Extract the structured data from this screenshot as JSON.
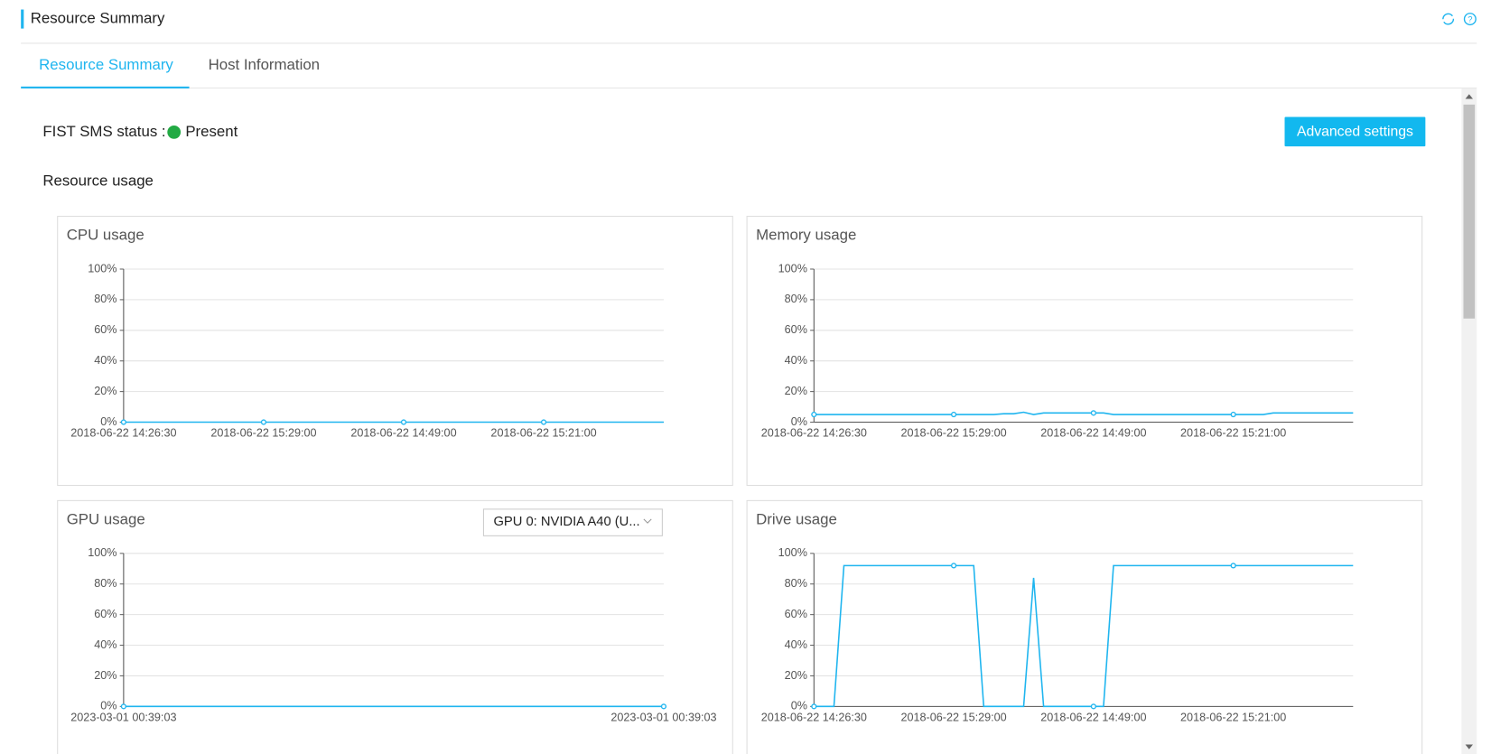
{
  "header": {
    "title": "Resource Summary"
  },
  "tabs": [
    "Resource Summary",
    "Host Information"
  ],
  "status": {
    "label": "FIST SMS status :",
    "value": "Present"
  },
  "button": "Advanced settings",
  "section_title": "Resource usage",
  "gpu_select": "GPU 0: NVIDIA A40 (U...",
  "chart_data": [
    {
      "type": "line",
      "title": "CPU usage",
      "color": "#1fb5ef",
      "grid": true,
      "categories": [
        "2018-06-22 14:26:30",
        null,
        null,
        null,
        null,
        null,
        null,
        null,
        null,
        null,
        null,
        null,
        null,
        null,
        "2018-06-22 15:29:00",
        null,
        null,
        null,
        null,
        null,
        null,
        null,
        null,
        null,
        null,
        null,
        null,
        null,
        "2018-06-22 14:49:00",
        null,
        null,
        null,
        null,
        null,
        null,
        null,
        null,
        null,
        null,
        null,
        null,
        null,
        "2018-06-22 15:21:00",
        null,
        null,
        null,
        null,
        null,
        null,
        null,
        null,
        null,
        null,
        null,
        null
      ],
      "values": [
        0,
        0,
        0,
        0,
        0,
        0,
        0,
        0,
        0,
        0,
        0,
        0,
        0,
        0,
        0,
        0,
        0,
        0,
        0,
        0,
        0,
        0,
        0,
        0,
        0,
        0,
        0,
        0,
        0,
        0,
        0,
        0,
        0,
        0,
        0,
        0,
        0,
        0,
        0,
        0,
        0,
        0,
        0,
        0,
        0,
        0,
        0,
        0,
        0,
        0,
        0,
        0,
        0,
        0,
        0
      ],
      "ylim": [
        0,
        100
      ],
      "yticks": [
        {
          "value": 0,
          "label": "0%"
        },
        {
          "value": 20,
          "label": "20%"
        },
        {
          "value": 40,
          "label": "40%"
        },
        {
          "value": 60,
          "label": "60%"
        },
        {
          "value": 80,
          "label": "80%"
        },
        {
          "value": 100,
          "label": "100%"
        }
      ]
    },
    {
      "type": "line",
      "title": "Memory usage",
      "color": "#1fb5ef",
      "grid": true,
      "categories": [
        "2018-06-22 14:26:30",
        null,
        null,
        null,
        null,
        null,
        null,
        null,
        null,
        null,
        null,
        null,
        null,
        null,
        "2018-06-22 15:29:00",
        null,
        null,
        null,
        null,
        null,
        null,
        null,
        null,
        null,
        null,
        null,
        null,
        null,
        "2018-06-22 14:49:00",
        null,
        null,
        null,
        null,
        null,
        null,
        null,
        null,
        null,
        null,
        null,
        null,
        null,
        "2018-06-22 15:21:00",
        null,
        null,
        null,
        null,
        null,
        null,
        null,
        null,
        null,
        null,
        null,
        null
      ],
      "values": [
        5,
        5,
        5,
        5,
        5,
        5,
        5,
        5,
        5,
        5,
        5,
        5,
        5,
        5,
        5,
        5,
        5,
        5,
        5,
        5.5,
        5.5,
        6.5,
        5,
        6,
        6,
        6,
        6,
        6,
        6,
        6,
        5,
        5,
        5,
        5,
        5,
        5,
        5,
        5,
        5,
        5,
        5,
        5,
        5,
        5,
        5,
        5,
        6,
        6,
        6,
        6,
        6,
        6,
        6,
        6,
        6
      ],
      "ylim": [
        0,
        100
      ],
      "yticks": [
        {
          "value": 0,
          "label": "0%"
        },
        {
          "value": 20,
          "label": "20%"
        },
        {
          "value": 40,
          "label": "40%"
        },
        {
          "value": 60,
          "label": "60%"
        },
        {
          "value": 80,
          "label": "80%"
        },
        {
          "value": 100,
          "label": "100%"
        }
      ]
    },
    {
      "type": "line",
      "title": "GPU usage",
      "color": "#1fb5ef",
      "grid": true,
      "categories": [
        "2023-03-01 00:39:03",
        "2023-03-01 00:39:03"
      ],
      "values": [
        0,
        0
      ],
      "ylim": [
        0,
        100
      ],
      "yticks": [
        {
          "value": 0,
          "label": "0%"
        },
        {
          "value": 20,
          "label": "20%"
        },
        {
          "value": 40,
          "label": "40%"
        },
        {
          "value": 60,
          "label": "60%"
        },
        {
          "value": 80,
          "label": "80%"
        },
        {
          "value": 100,
          "label": "100%"
        }
      ]
    },
    {
      "type": "line",
      "title": "Drive usage",
      "color": "#1fb5ef",
      "grid": true,
      "categories": [
        "2018-06-22 14:26:30",
        null,
        null,
        null,
        null,
        null,
        null,
        null,
        null,
        null,
        null,
        null,
        null,
        null,
        "2018-06-22 15:29:00",
        null,
        null,
        null,
        null,
        null,
        null,
        null,
        null,
        null,
        null,
        null,
        null,
        null,
        "2018-06-22 14:49:00",
        null,
        null,
        null,
        null,
        null,
        null,
        null,
        null,
        null,
        null,
        null,
        null,
        null,
        "2018-06-22 15:21:00",
        null,
        null,
        null,
        null,
        null,
        null,
        null,
        null,
        null,
        null,
        null,
        null
      ],
      "values": [
        0,
        0,
        0,
        92,
        92,
        92,
        92,
        92,
        92,
        92,
        92,
        92,
        92,
        92,
        92,
        92,
        92,
        0,
        0,
        0,
        0,
        0,
        84,
        0,
        0,
        0,
        0,
        0,
        0,
        0,
        92,
        92,
        92,
        92,
        92,
        92,
        92,
        92,
        92,
        92,
        92,
        92,
        92,
        92,
        92,
        92,
        92,
        92,
        92,
        92,
        92,
        92,
        92,
        92,
        92
      ],
      "ylim": [
        0,
        100
      ],
      "yticks": [
        {
          "value": 0,
          "label": "0%"
        },
        {
          "value": 20,
          "label": "20%"
        },
        {
          "value": 40,
          "label": "40%"
        },
        {
          "value": 60,
          "label": "60%"
        },
        {
          "value": 80,
          "label": "80%"
        },
        {
          "value": 100,
          "label": "100%"
        }
      ]
    }
  ]
}
